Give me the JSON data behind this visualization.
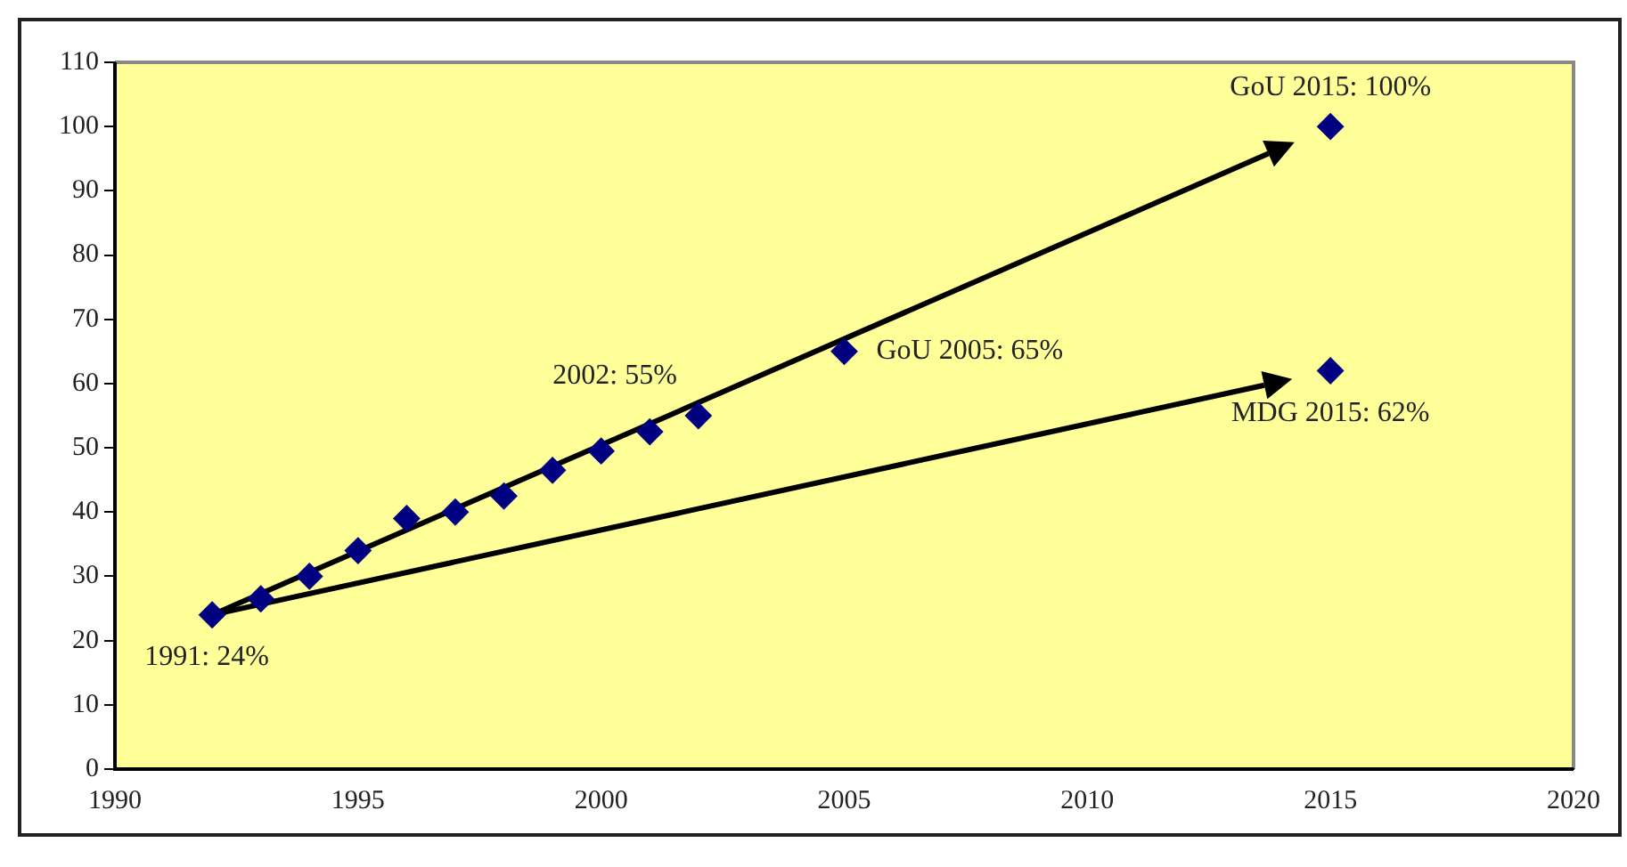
{
  "chart_data": {
    "type": "scatter",
    "x": [
      1992,
      1993,
      1994,
      1995,
      1996,
      1997,
      1998,
      1999,
      2000,
      2001,
      2002,
      2005,
      2015,
      2015
    ],
    "values": [
      24,
      26.5,
      30,
      34,
      39,
      40,
      42.5,
      46.5,
      49.5,
      52.5,
      55,
      65,
      100,
      62
    ],
    "color": "#000080",
    "marker": "diamond",
    "grid": false,
    "legend": false,
    "xlim": [
      1990,
      2020
    ],
    "xticks": [
      1990,
      1995,
      2000,
      2005,
      2010,
      2015,
      2020
    ],
    "ylim": [
      0,
      110
    ],
    "yticks": [
      0,
      10,
      20,
      30,
      40,
      50,
      60,
      70,
      80,
      90,
      100,
      110
    ],
    "annotations": [
      {
        "text": "1991: 24%",
        "x": 1992,
        "y": 24
      },
      {
        "text": "2002: 55%",
        "x": 2002,
        "y": 55
      },
      {
        "text": "GoU 2005: 65%",
        "x": 2005,
        "y": 65
      },
      {
        "text": "GoU 2015: 100%",
        "x": 2015,
        "y": 100
      },
      {
        "text": "MDG 2015: 62%",
        "x": 2015,
        "y": 62
      }
    ]
  }
}
